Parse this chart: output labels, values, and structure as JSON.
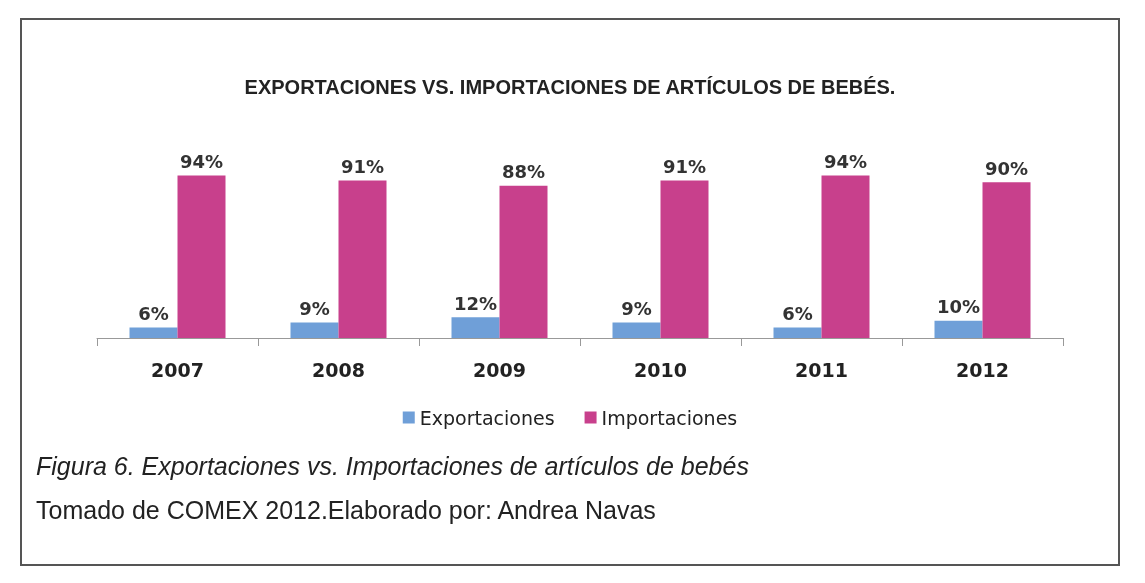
{
  "chart_data": {
    "type": "bar",
    "title": "EXPORTACIONES VS. IMPORTACIONES DE ARTÍCULOS DE BEBÉS.",
    "categories": [
      "2007",
      "2008",
      "2009",
      "2010",
      "2011",
      "2012"
    ],
    "series": [
      {
        "name": "Exportaciones",
        "color": "#6f9fd8",
        "values": [
          6,
          9,
          12,
          9,
          6,
          10
        ],
        "value_labels": [
          "6%",
          "9%",
          "12%",
          "9%",
          "6%",
          "10%"
        ]
      },
      {
        "name": "Importaciones",
        "color": "#c8408c",
        "values": [
          94,
          91,
          88,
          91,
          94,
          90
        ],
        "value_labels": [
          "94%",
          "91%",
          "88%",
          "91%",
          "94%",
          "90%"
        ]
      }
    ],
    "legend": "bottom",
    "annotations": [
      "Figura 6. Exportaciones vs. Importaciones de artículos de bebés",
      "Tomado de  COMEX 2012.Elaborado por: Andrea Navas"
    ]
  }
}
